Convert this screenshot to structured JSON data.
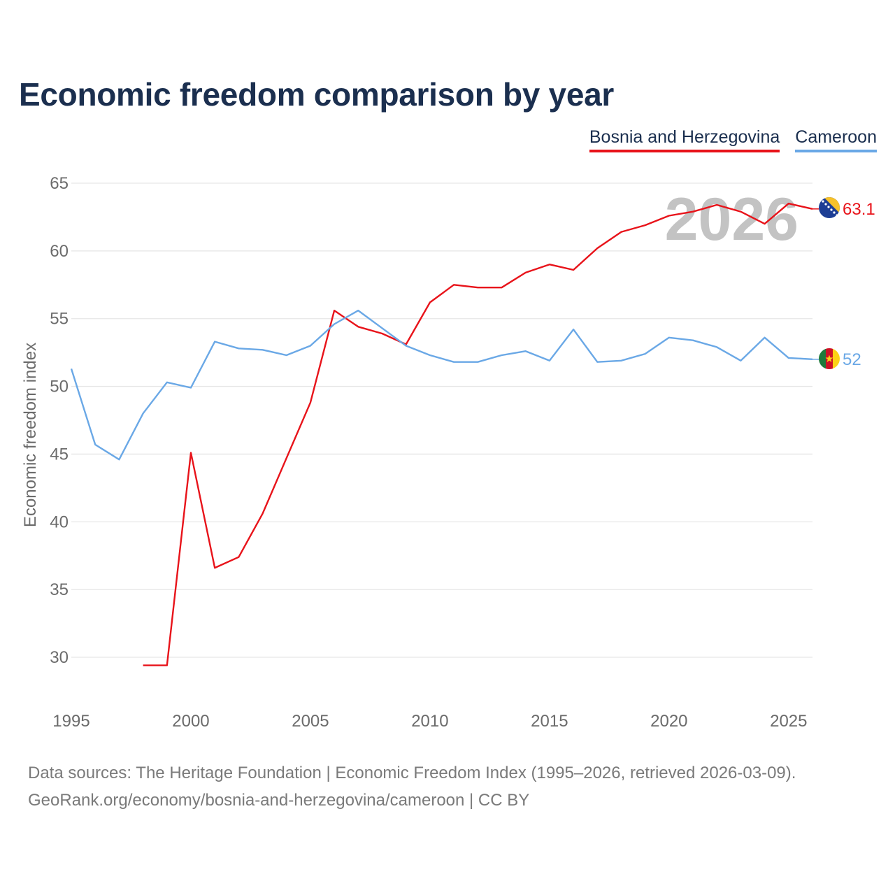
{
  "title": "Economic freedom comparison by year",
  "legend": [
    {
      "name": "Bosnia and Herzegovina",
      "color": "#e8131a"
    },
    {
      "name": "Cameroon",
      "color": "#6aa8e6"
    }
  ],
  "watermark_year": "2026",
  "chart_data": {
    "type": "line",
    "title": "Economic freedom comparison by year",
    "xlabel": "",
    "ylabel": "Economic freedom index",
    "xlim": [
      1995,
      2026
    ],
    "ylim": [
      27,
      65
    ],
    "x_ticks": [
      1995,
      2000,
      2005,
      2010,
      2015,
      2020,
      2025
    ],
    "y_ticks": [
      30,
      35,
      40,
      45,
      50,
      55,
      60,
      65
    ],
    "grid": true,
    "legend_position": "top-right",
    "series": [
      {
        "name": "Bosnia and Herzegovina",
        "color": "#e8131a",
        "end_label": "63.1",
        "flag": "bosnia-flag-icon",
        "points": [
          [
            1998,
            29.4
          ],
          [
            1999,
            29.4
          ],
          [
            2000,
            45.1
          ],
          [
            2001,
            36.6
          ],
          [
            2002,
            37.4
          ],
          [
            2003,
            40.6
          ],
          [
            2004,
            44.7
          ],
          [
            2005,
            48.8
          ],
          [
            2006,
            55.6
          ],
          [
            2007,
            54.4
          ],
          [
            2008,
            53.9
          ],
          [
            2009,
            53.1
          ],
          [
            2010,
            56.2
          ],
          [
            2011,
            57.5
          ],
          [
            2012,
            57.3
          ],
          [
            2013,
            57.3
          ],
          [
            2014,
            58.4
          ],
          [
            2015,
            59.0
          ],
          [
            2016,
            58.6
          ],
          [
            2017,
            60.2
          ],
          [
            2018,
            61.4
          ],
          [
            2019,
            61.9
          ],
          [
            2020,
            62.6
          ],
          [
            2021,
            62.9
          ],
          [
            2022,
            63.4
          ],
          [
            2023,
            62.9
          ],
          [
            2024,
            62.0
          ],
          [
            2025,
            63.5
          ],
          [
            2026,
            63.1
          ]
        ]
      },
      {
        "name": "Cameroon",
        "color": "#6aa8e6",
        "end_label": "52",
        "flag": "cameroon-flag-icon",
        "points": [
          [
            1995,
            51.3
          ],
          [
            1996,
            45.7
          ],
          [
            1997,
            44.6
          ],
          [
            1998,
            48.0
          ],
          [
            1999,
            50.3
          ],
          [
            2000,
            49.9
          ],
          [
            2001,
            53.3
          ],
          [
            2002,
            52.8
          ],
          [
            2003,
            52.7
          ],
          [
            2004,
            52.3
          ],
          [
            2005,
            53.0
          ],
          [
            2006,
            54.6
          ],
          [
            2007,
            55.6
          ],
          [
            2008,
            54.3
          ],
          [
            2009,
            53.0
          ],
          [
            2010,
            52.3
          ],
          [
            2011,
            51.8
          ],
          [
            2012,
            51.8
          ],
          [
            2013,
            52.3
          ],
          [
            2014,
            52.6
          ],
          [
            2015,
            51.9
          ],
          [
            2016,
            54.2
          ],
          [
            2017,
            51.8
          ],
          [
            2018,
            51.9
          ],
          [
            2019,
            52.4
          ],
          [
            2020,
            53.6
          ],
          [
            2021,
            53.4
          ],
          [
            2022,
            52.9
          ],
          [
            2023,
            51.9
          ],
          [
            2024,
            53.6
          ],
          [
            2025,
            52.1
          ],
          [
            2026,
            52.0
          ]
        ]
      }
    ]
  },
  "sources": {
    "line1": "Data sources: The Heritage Foundation | Economic Freedom Index (1995–2026, retrieved 2026-03-09).",
    "line2": "GeoRank.org/economy/bosnia-and-herzegovina/cameroon | CC BY"
  }
}
